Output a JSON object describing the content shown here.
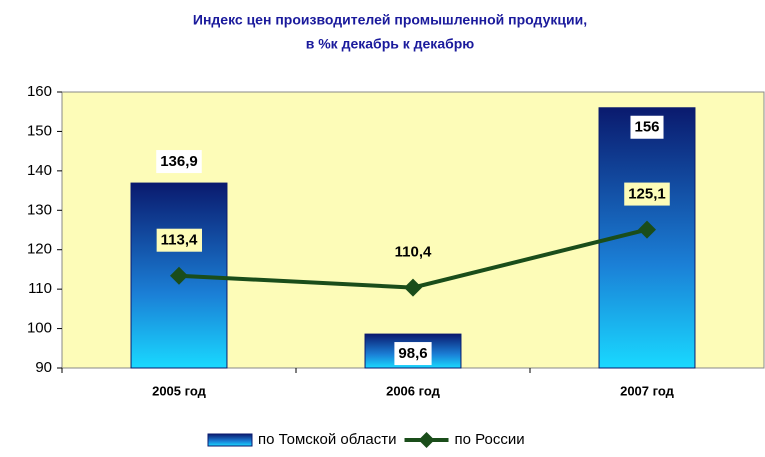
{
  "chart_data": {
    "type": "combo",
    "title": "Индекс цен производителей промышленной продукции,",
    "subtitle": "в %к декабрь к декабрю",
    "categories": [
      "2005 год",
      "2006 год",
      "2007 год"
    ],
    "series": [
      {
        "name": "по Томской области",
        "type": "bar",
        "color": "#0a1a6e",
        "values": [
          136.9,
          98.6,
          156
        ],
        "value_labels": [
          "136,9",
          "98,6",
          "156"
        ]
      },
      {
        "name": "по России",
        "type": "line",
        "color": "#1a4d1a",
        "values": [
          113.4,
          110.4,
          125.1
        ],
        "value_labels": [
          "113,4",
          "110,4",
          "125,1"
        ]
      }
    ],
    "ylim": [
      90,
      160
    ],
    "yticks": [
      90,
      100,
      110,
      120,
      130,
      140,
      150,
      160
    ],
    "legend": "bottom"
  }
}
